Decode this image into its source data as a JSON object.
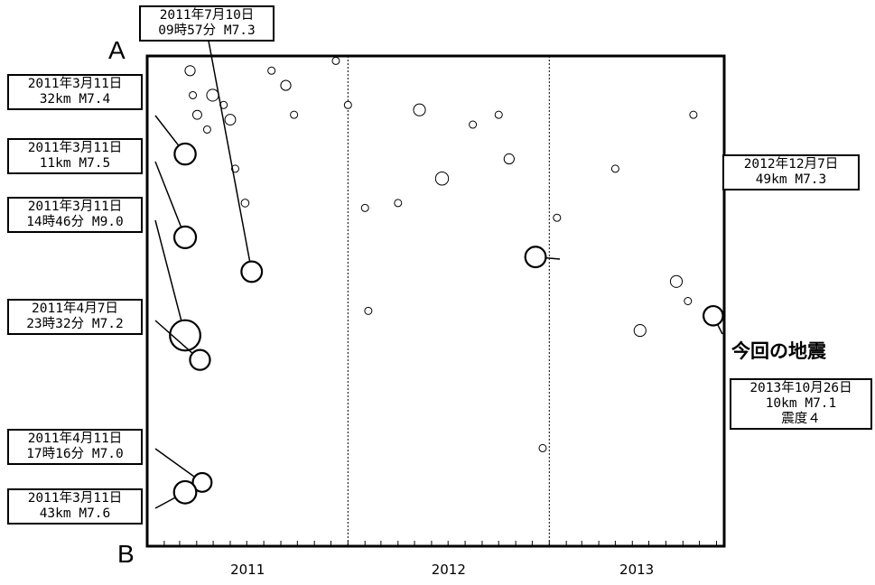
{
  "section_labels": {
    "start": "A",
    "end": "B"
  },
  "today_label": "今回の地震",
  "callouts": [
    {
      "id": "c1",
      "lines": [
        "2011年7月10日",
        "09時57分 M7.3"
      ]
    },
    {
      "id": "c2",
      "lines": [
        "2011年3月11日",
        "32km  M7.4"
      ]
    },
    {
      "id": "c3",
      "lines": [
        "2011年3月11日",
        "11km  M7.5"
      ]
    },
    {
      "id": "c4",
      "lines": [
        "2011年3月11日",
        "14時46分 M9.0"
      ]
    },
    {
      "id": "c5",
      "lines": [
        "2011年4月7日",
        "23時32分 M7.2"
      ]
    },
    {
      "id": "c6",
      "lines": [
        "2011年4月11日",
        "17時16分 M7.0"
      ]
    },
    {
      "id": "c7",
      "lines": [
        "2011年3月11日",
        "43km  M7.6"
      ]
    },
    {
      "id": "c8",
      "lines": [
        "2012年12月7日",
        "49km  M7.3"
      ]
    },
    {
      "id": "c9",
      "lines": [
        "2013年10月26日",
        "10km  M7.1",
        "震度４"
      ]
    }
  ],
  "chart_data": {
    "type": "scatter",
    "title": "",
    "xlabel": "",
    "ylabel": "",
    "x_ticks": [
      "2011",
      "2012",
      "2013"
    ],
    "x_range": [
      "2011-01-01",
      "2013-11-15"
    ],
    "y_axis": {
      "top": "A",
      "bottom": "B",
      "unit": "along-section position, 0 = A, 1 = B"
    },
    "year_boundaries": [
      "2012-01-01",
      "2013-01-01"
    ],
    "grid": "dotted vertical lines at year boundaries",
    "labeled_events": [
      {
        "date": "2011-03-11",
        "position": 0.2,
        "magnitude": 7.4,
        "depth_km": 32
      },
      {
        "date": "2011-03-11",
        "position": 0.37,
        "magnitude": 7.5,
        "depth_km": 11
      },
      {
        "date": "2011-03-11",
        "position": 0.57,
        "magnitude": 9.0
      },
      {
        "date": "2011-04-07",
        "position": 0.62,
        "magnitude": 7.2
      },
      {
        "date": "2011-04-11",
        "position": 0.87,
        "magnitude": 7.0
      },
      {
        "date": "2011-03-11",
        "position": 0.89,
        "magnitude": 7.6,
        "depth_km": 43
      },
      {
        "date": "2011-07-10",
        "position": 0.44,
        "magnitude": 7.3
      },
      {
        "date": "2012-12-07",
        "position": 0.41,
        "magnitude": 7.3,
        "depth_km": 49
      },
      {
        "date": "2013-10-26",
        "position": 0.53,
        "magnitude": 7.1,
        "depth_km": 10,
        "intensity": "4"
      }
    ],
    "background_events": [
      {
        "date": "2011-03-20",
        "position": 0.03,
        "magnitude": 5.5
      },
      {
        "date": "2011-03-25",
        "position": 0.08,
        "magnitude": 5.0
      },
      {
        "date": "2011-04-02",
        "position": 0.12,
        "magnitude": 5.3
      },
      {
        "date": "2011-04-20",
        "position": 0.15,
        "magnitude": 5.0
      },
      {
        "date": "2011-04-30",
        "position": 0.08,
        "magnitude": 5.8
      },
      {
        "date": "2011-05-20",
        "position": 0.1,
        "magnitude": 5.0
      },
      {
        "date": "2011-06-01",
        "position": 0.13,
        "magnitude": 5.6
      },
      {
        "date": "2011-06-10",
        "position": 0.23,
        "magnitude": 5.0
      },
      {
        "date": "2011-06-28",
        "position": 0.3,
        "magnitude": 5.1
      },
      {
        "date": "2011-08-15",
        "position": 0.03,
        "magnitude": 5.0
      },
      {
        "date": "2011-09-10",
        "position": 0.06,
        "magnitude": 5.5
      },
      {
        "date": "2011-09-25",
        "position": 0.12,
        "magnitude": 5.0
      },
      {
        "date": "2011-12-10",
        "position": 0.01,
        "magnitude": 5.0
      },
      {
        "date": "2012-01-01",
        "position": 0.1,
        "magnitude": 5.0
      },
      {
        "date": "2012-02-01",
        "position": 0.31,
        "magnitude": 5.0
      },
      {
        "date": "2012-02-07",
        "position": 0.52,
        "magnitude": 5.0
      },
      {
        "date": "2012-04-01",
        "position": 0.3,
        "magnitude": 5.0
      },
      {
        "date": "2012-05-10",
        "position": 0.11,
        "magnitude": 5.8
      },
      {
        "date": "2012-06-20",
        "position": 0.25,
        "magnitude": 6.0
      },
      {
        "date": "2012-08-15",
        "position": 0.14,
        "magnitude": 5.0
      },
      {
        "date": "2012-10-01",
        "position": 0.12,
        "magnitude": 5.0
      },
      {
        "date": "2012-10-20",
        "position": 0.21,
        "magnitude": 5.5
      },
      {
        "date": "2012-12-20",
        "position": 0.8,
        "magnitude": 5.0
      },
      {
        "date": "2013-01-15",
        "position": 0.33,
        "magnitude": 5.0
      },
      {
        "date": "2013-05-01",
        "position": 0.23,
        "magnitude": 5.0
      },
      {
        "date": "2013-06-15",
        "position": 0.56,
        "magnitude": 5.8
      },
      {
        "date": "2013-08-20",
        "position": 0.46,
        "magnitude": 5.8
      },
      {
        "date": "2013-09-10",
        "position": 0.5,
        "magnitude": 5.0
      },
      {
        "date": "2013-09-20",
        "position": 0.12,
        "magnitude": 5.0
      }
    ]
  },
  "colors": {
    "marker": "#000000",
    "background": "#ffffff",
    "frame": "#000000"
  }
}
